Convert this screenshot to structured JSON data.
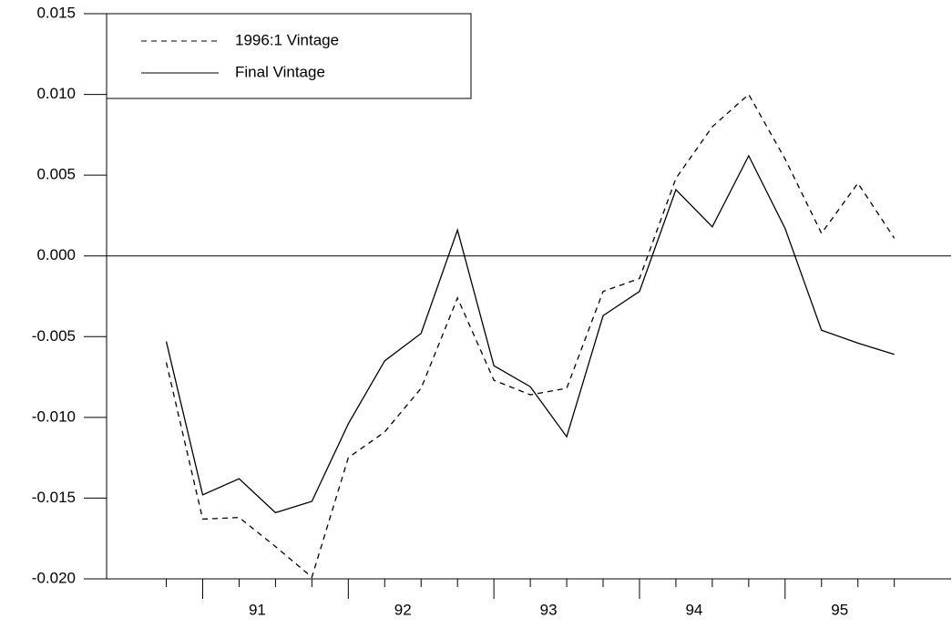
{
  "chart_data": {
    "type": "line",
    "x": [
      90.75,
      91,
      91.25,
      91.5,
      91.75,
      92,
      92.25,
      92.5,
      92.75,
      93,
      93.25,
      93.5,
      93.75,
      94,
      94.25,
      94.5,
      94.75,
      95,
      95.25,
      95.5,
      95.75
    ],
    "series": [
      {
        "name": "1996:1 Vintage",
        "color": "#000000",
        "dash": true,
        "values": [
          -0.0066,
          -0.0163,
          -0.0162,
          -0.018,
          -0.0199,
          -0.0125,
          -0.0109,
          -0.0082,
          -0.0026,
          -0.0077,
          -0.0086,
          -0.0082,
          -0.0022,
          -0.0014,
          0.0048,
          0.008,
          0.01,
          0.006,
          0.0014,
          0.0045,
          0.0011
        ]
      },
      {
        "name": "Final Vintage",
        "color": "#000000",
        "dash": false,
        "values": [
          -0.0053,
          -0.0148,
          -0.0138,
          -0.0159,
          -0.0152,
          -0.0104,
          -0.0065,
          -0.0048,
          0.0016,
          -0.0068,
          -0.0081,
          -0.0112,
          -0.0037,
          -0.0022,
          0.0041,
          0.0018,
          0.0062,
          0.0017,
          -0.0046,
          -0.0054,
          -0.0061
        ]
      }
    ],
    "xlim": [
      90.34,
      96.14
    ],
    "xticks": [
      {
        "value": 91.375,
        "label": "91"
      },
      {
        "value": 92.375,
        "label": "92"
      },
      {
        "value": 93.375,
        "label": "93"
      },
      {
        "value": 94.375,
        "label": "94"
      },
      {
        "value": 95.375,
        "label": "95"
      }
    ],
    "ylim": [
      -0.02,
      0.015
    ],
    "yticks": [
      {
        "value": 0.015,
        "label": "0.015"
      },
      {
        "value": 0.01,
        "label": "0.010"
      },
      {
        "value": 0.005,
        "label": "0.005"
      },
      {
        "value": 0,
        "label": "0.000"
      },
      {
        "value": -0.005,
        "label": "-0.005"
      },
      {
        "value": -0.01,
        "label": "-0.010"
      },
      {
        "value": -0.015,
        "label": "-0.015"
      },
      {
        "value": -0.02,
        "label": "-0.020"
      }
    ],
    "zero_line": true,
    "legend": "upper left"
  }
}
